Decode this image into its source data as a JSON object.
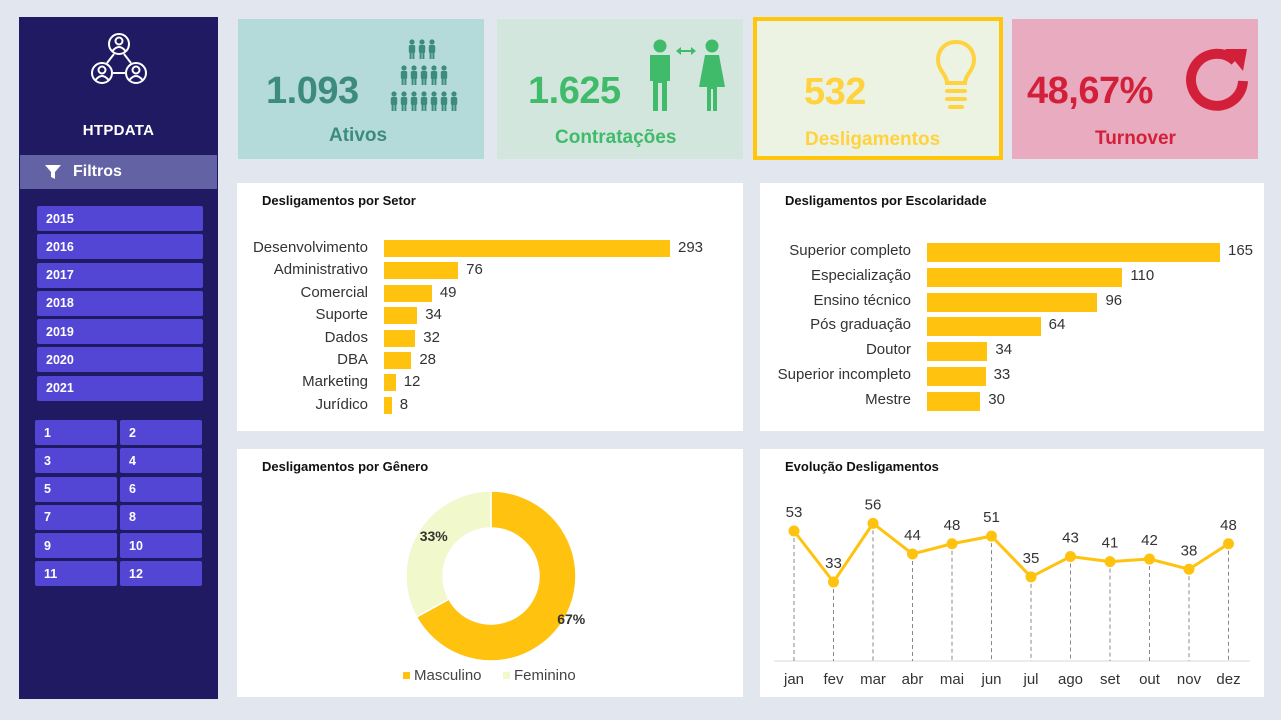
{
  "brand": "HTPDATA",
  "filters": {
    "label": "Filtros",
    "years": [
      "2015",
      "2016",
      "2017",
      "2018",
      "2019",
      "2020",
      "2021"
    ],
    "months": [
      "1",
      "2",
      "3",
      "4",
      "5",
      "6",
      "7",
      "8",
      "9",
      "10",
      "11",
      "12"
    ]
  },
  "kpis": {
    "ativos": {
      "value": "1.093",
      "label": "Ativos",
      "color": "#3c8b7e"
    },
    "contratacoes": {
      "value": "1.625",
      "label": "Contratações",
      "color": "#40bb6a"
    },
    "desligamentos": {
      "value": "532",
      "label": "Desligamentos",
      "color": "#ffd23f"
    },
    "turnover": {
      "value": "48,67%",
      "label": "Turnover",
      "color": "#d3203a"
    }
  },
  "panels": {
    "setor": {
      "title": "Desligamentos por Setor"
    },
    "escolaridade": {
      "title": "Desligamentos por Escolaridade"
    },
    "genero": {
      "title": "Desligamentos por Gênero"
    },
    "evolucao": {
      "title": "Evolução Desligamentos"
    }
  },
  "chart_data": [
    {
      "type": "bar",
      "orientation": "horizontal",
      "title": "Desligamentos por Setor",
      "categories": [
        "Desenvolvimento",
        "Administrativo",
        "Comercial",
        "Suporte",
        "Dados",
        "DBA",
        "Marketing",
        "Jurídico"
      ],
      "values": [
        293,
        76,
        49,
        34,
        32,
        28,
        12,
        8
      ],
      "color": "#ffc20e"
    },
    {
      "type": "bar",
      "orientation": "horizontal",
      "title": "Desligamentos por Escolaridade",
      "categories": [
        "Superior completo",
        "Especialização",
        "Ensino técnico",
        "Pós graduação",
        "Doutor",
        "Superior incompleto",
        "Mestre"
      ],
      "values": [
        165,
        110,
        96,
        64,
        34,
        33,
        30
      ],
      "color": "#ffc20e"
    },
    {
      "type": "pie",
      "title": "Desligamentos por Gênero",
      "donut": true,
      "categories": [
        "Masculino",
        "Feminino"
      ],
      "values": [
        67,
        33
      ],
      "labels": [
        "67%",
        "33%"
      ],
      "colors": [
        "#ffc20e",
        "#f1f8cc"
      ],
      "legend": "bottom"
    },
    {
      "type": "line",
      "title": "Evolução Desligamentos",
      "categories": [
        "jan",
        "fev",
        "mar",
        "abr",
        "mai",
        "jun",
        "jul",
        "ago",
        "set",
        "out",
        "nov",
        "dez"
      ],
      "values": [
        53,
        33,
        56,
        44,
        48,
        51,
        35,
        43,
        41,
        42,
        38,
        48
      ],
      "color": "#ffc20e",
      "drop_lines": true
    }
  ]
}
